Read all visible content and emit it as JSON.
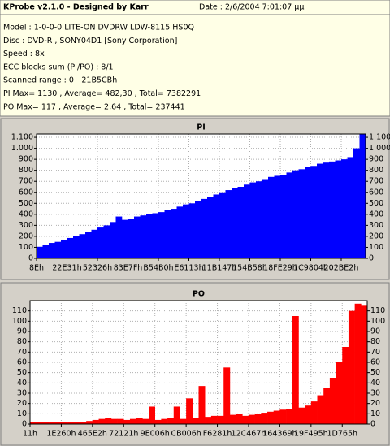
{
  "header": {
    "title": "KProbe v2.1.0 - Designed by Karr",
    "date": "Date : 2/6/2004 7:01:07 μμ",
    "lines": [
      "Model : 1-0-0-0 LITE-ON DVDRW LDW-8115   HS0Q",
      "Disc : DVD-R , SONY04D1 [Sony Corporation]",
      "Speed : 8x",
      "ECC blocks sum (PI/PO) : 8/1",
      "Scanned range : 0 - 21B5CBh",
      "PI Max= 1130 , Average= 482,30 , Total= 7382291",
      "PO Max= 117 , Average= 2,64 , Total= 237441"
    ]
  },
  "chart_data": [
    {
      "type": "bar",
      "title": "PI",
      "color": "#0000ff",
      "grid": true,
      "x": [
        0,
        2,
        4,
        6,
        8,
        10,
        12,
        14,
        16,
        18,
        20,
        22,
        24,
        26,
        28,
        30,
        32,
        34,
        36,
        38,
        40,
        42,
        44,
        46,
        48,
        50,
        52,
        54,
        56,
        58,
        60,
        62,
        64,
        66,
        68,
        70,
        72,
        74,
        76,
        78,
        80,
        82,
        84,
        86,
        88,
        90,
        92,
        94,
        96,
        98,
        100,
        102,
        104,
        106
      ],
      "values": [
        105,
        120,
        140,
        150,
        170,
        185,
        200,
        220,
        240,
        260,
        280,
        300,
        330,
        380,
        350,
        360,
        380,
        390,
        400,
        410,
        420,
        440,
        450,
        470,
        490,
        500,
        520,
        540,
        560,
        580,
        600,
        620,
        640,
        650,
        670,
        690,
        700,
        720,
        740,
        750,
        760,
        780,
        800,
        810,
        830,
        840,
        860,
        870,
        880,
        890,
        900,
        920,
        1000,
        1130
      ],
      "xlim": [
        0,
        108
      ],
      "xticks": [
        {
          "value": 0,
          "label": "8Eh"
        },
        {
          "value": 10,
          "label": "22E31h"
        },
        {
          "value": 20,
          "label": "52326h"
        },
        {
          "value": 30,
          "label": "83E7Fh"
        },
        {
          "value": 40,
          "label": "B54B0h"
        },
        {
          "value": 50,
          "label": "E6113h"
        },
        {
          "value": 60,
          "label": "11B147h"
        },
        {
          "value": 70,
          "label": "154B58h"
        },
        {
          "value": 80,
          "label": "18FE29h"
        },
        {
          "value": 90,
          "label": "1C9804h"
        },
        {
          "value": 100,
          "label": "202BE2h"
        }
      ],
      "ylim": [
        0,
        1130
      ],
      "yticks": [
        0,
        100,
        200,
        300,
        400,
        500,
        600,
        700,
        800,
        900,
        {
          "value": 1000,
          "label": "1.000"
        },
        {
          "value": 1100,
          "label": "1.100"
        }
      ]
    },
    {
      "type": "bar",
      "title": "PO",
      "color": "#ff0000",
      "grid": true,
      "x": [
        0,
        2,
        4,
        6,
        8,
        10,
        12,
        14,
        16,
        18,
        20,
        22,
        24,
        26,
        28,
        30,
        32,
        34,
        36,
        38,
        40,
        42,
        44,
        46,
        48,
        50,
        52,
        54,
        56,
        58,
        60,
        62,
        64,
        66,
        68,
        70,
        72,
        74,
        76,
        78,
        80,
        82,
        84,
        86,
        88,
        90,
        92,
        94,
        96,
        98,
        100,
        102,
        104,
        106
      ],
      "values": [
        2,
        2,
        2,
        2,
        2,
        2,
        2,
        2,
        2,
        3,
        4,
        5,
        6,
        5,
        5,
        4,
        5,
        6,
        5,
        17,
        4,
        5,
        6,
        17,
        5,
        25,
        6,
        37,
        7,
        8,
        8,
        55,
        9,
        10,
        8,
        9,
        10,
        11,
        12,
        13,
        14,
        15,
        105,
        16,
        18,
        22,
        28,
        35,
        45,
        60,
        75,
        110,
        117,
        115
      ],
      "xlim": [
        0,
        108
      ],
      "xticks": [
        {
          "value": 0,
          "label": "11h"
        },
        {
          "value": 10,
          "label": "1E260h"
        },
        {
          "value": 20,
          "label": "465E2h"
        },
        {
          "value": 30,
          "label": "72121h"
        },
        {
          "value": 40,
          "label": "9E006h"
        },
        {
          "value": 50,
          "label": "CB006h"
        },
        {
          "value": 60,
          "label": "F6281h"
        },
        {
          "value": 70,
          "label": "12C467h"
        },
        {
          "value": 80,
          "label": "164369h"
        },
        {
          "value": 90,
          "label": "19F495h"
        },
        {
          "value": 100,
          "label": "1D765h"
        }
      ],
      "ylim": [
        0,
        120
      ],
      "yticks": [
        0,
        10,
        20,
        30,
        40,
        50,
        60,
        70,
        80,
        90,
        100,
        110
      ]
    }
  ]
}
